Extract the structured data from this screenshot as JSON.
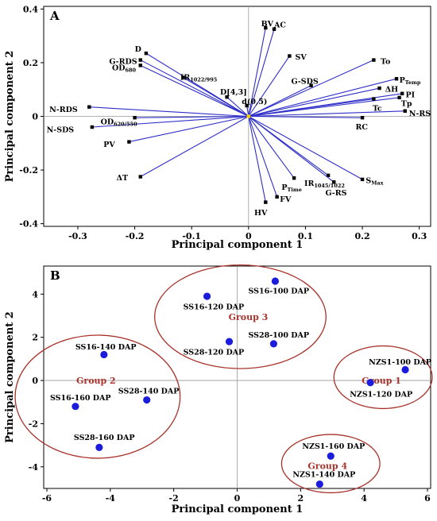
{
  "chart_data": [
    {
      "type": "scatter",
      "subtype": "biplot",
      "panel": "A",
      "xlabel": "Principal component 1",
      "ylabel": "Principal component 2",
      "xlim": [
        -0.36,
        0.32
      ],
      "ylim": [
        -0.41,
        0.41
      ],
      "xticks": [
        -0.3,
        -0.2,
        -0.1,
        0,
        0.1,
        0.2,
        0.3
      ],
      "yticks": [
        -0.4,
        -0.2,
        0,
        0.2,
        0.4
      ],
      "grid": false,
      "colors": {
        "vector": "#2f2fc8",
        "marker": "#000000"
      },
      "vectors": [
        {
          "label": "BV",
          "x": 0.03,
          "y": 0.33,
          "lx": 0.022,
          "ly": 0.345
        },
        {
          "label": "AC",
          "x": 0.045,
          "y": 0.325,
          "lx": 0.045,
          "ly": 0.34
        },
        {
          "label": "SV",
          "x": 0.072,
          "y": 0.225,
          "lx": 0.082,
          "ly": 0.22
        },
        {
          "label": "To",
          "x": 0.22,
          "y": 0.21,
          "lx": 0.232,
          "ly": 0.205
        },
        {
          "label": "G-SDS",
          "x": 0.11,
          "y": 0.115,
          "lx": 0.075,
          "ly": 0.13
        },
        {
          "label": "P",
          "sub": "Temp",
          "x": 0.26,
          "y": 0.14,
          "lx": 0.265,
          "ly": 0.135
        },
        {
          "label": "ΔH",
          "x": 0.23,
          "y": 0.105,
          "lx": 0.24,
          "ly": 0.1
        },
        {
          "label": "PI",
          "x": 0.27,
          "y": 0.085,
          "lx": 0.276,
          "ly": 0.08
        },
        {
          "label": "Tp",
          "x": 0.265,
          "y": 0.07,
          "lx": 0.268,
          "ly": 0.048
        },
        {
          "label": "Tc",
          "x": 0.22,
          "y": 0.065,
          "lx": 0.218,
          "ly": 0.03
        },
        {
          "label": "N-RS",
          "x": 0.275,
          "y": 0.02,
          "lx": 0.282,
          "ly": 0.01
        },
        {
          "label": "RC",
          "x": 0.2,
          "y": -0.005,
          "lx": 0.188,
          "ly": -0.04
        },
        {
          "label": "S",
          "sub": "Max",
          "x": 0.2,
          "y": -0.235,
          "lx": 0.206,
          "ly": -0.24
        },
        {
          "label": "IR",
          "sub": "1045/1022",
          "x": 0.14,
          "y": -0.22,
          "lx": 0.098,
          "ly": -0.25
        },
        {
          "label": "G-RS",
          "x": 0.15,
          "y": -0.245,
          "lx": 0.135,
          "ly": -0.285
        },
        {
          "label": "P",
          "sub": "Time",
          "x": 0.08,
          "y": -0.23,
          "lx": 0.058,
          "ly": -0.265
        },
        {
          "label": "FV",
          "x": 0.05,
          "y": -0.3,
          "lx": 0.055,
          "ly": -0.31
        },
        {
          "label": "HV",
          "x": 0.03,
          "y": -0.32,
          "lx": 0.01,
          "ly": -0.36
        },
        {
          "label": "ΔT",
          "x": -0.19,
          "y": -0.225,
          "lx": -0.232,
          "ly": -0.23
        },
        {
          "label": "PV",
          "x": -0.21,
          "y": -0.095,
          "lx": -0.255,
          "ly": -0.105
        },
        {
          "label": "N-SDS",
          "x": -0.275,
          "y": -0.04,
          "lx": -0.355,
          "ly": -0.05
        },
        {
          "label": "OD",
          "sub": "620/550",
          "x": -0.2,
          "y": -0.005,
          "lx": -0.26,
          "ly": -0.02
        },
        {
          "label": "N-RDS",
          "x": -0.28,
          "y": 0.035,
          "lx": -0.35,
          "ly": 0.025
        },
        {
          "label": "OD",
          "sub": "680",
          "x": -0.19,
          "y": 0.19,
          "lx": -0.24,
          "ly": 0.18
        },
        {
          "label": "G-RDS",
          "x": -0.19,
          "y": 0.21,
          "lx": -0.245,
          "ly": 0.205
        },
        {
          "label": "D",
          "x": -0.18,
          "y": 0.235,
          "lx": -0.2,
          "ly": 0.25
        },
        {
          "label": "IR",
          "sub": "1022/995",
          "x": -0.115,
          "y": 0.145,
          "lx": -0.12,
          "ly": 0.145
        },
        {
          "label": "D[4,3]",
          "x": -0.038,
          "y": 0.072,
          "lx": -0.05,
          "ly": 0.09
        },
        {
          "label": "d(0,5)",
          "x": -0.003,
          "y": 0.04,
          "lx": -0.012,
          "ly": 0.055
        }
      ]
    },
    {
      "type": "scatter",
      "panel": "B",
      "xlabel": "Principal component 1",
      "ylabel": "Principal component 2",
      "xlim": [
        -6.1,
        6.1
      ],
      "ylim": [
        -5.0,
        5.3
      ],
      "xticks": [
        -6,
        -4,
        -2,
        0,
        2,
        4,
        6
      ],
      "yticks": [
        -4,
        -2,
        0,
        2,
        4
      ],
      "grid": false,
      "colors": {
        "point": "#1c1cdc",
        "group": "#a8332b"
      },
      "points": [
        {
          "label": "SS16-100 DAP",
          "x": 1.2,
          "y": 4.6,
          "lx": 0.35,
          "ly": 4.15
        },
        {
          "label": "SS16-120 DAP",
          "x": -0.95,
          "y": 3.9,
          "lx": -1.7,
          "ly": 3.4
        },
        {
          "label": "SS28-100 DAP",
          "x": 1.15,
          "y": 1.7,
          "lx": 0.35,
          "ly": 2.1
        },
        {
          "label": "SS28-120 DAP",
          "x": -0.25,
          "y": 1.8,
          "lx": -1.7,
          "ly": 1.3
        },
        {
          "label": "SS16-140 DAP",
          "x": -4.2,
          "y": 1.2,
          "lx": -5.1,
          "ly": 1.55
        },
        {
          "label": "SS28-140 DAP",
          "x": -2.85,
          "y": -0.9,
          "lx": -3.75,
          "ly": -0.5
        },
        {
          "label": "SS16-160 DAP",
          "x": -5.1,
          "y": -1.2,
          "lx": -5.9,
          "ly": -0.8
        },
        {
          "label": "SS28-160 DAP",
          "x": -4.35,
          "y": -3.1,
          "lx": -5.15,
          "ly": -2.65
        },
        {
          "label": "NZS1-100 DAP",
          "x": 5.3,
          "y": 0.5,
          "lx": 4.15,
          "ly": 0.85
        },
        {
          "label": "NZS1-120 DAP",
          "x": 4.2,
          "y": -0.1,
          "lx": 3.55,
          "ly": -0.65
        },
        {
          "label": "NZS1-160 DAP",
          "x": 2.95,
          "y": -3.5,
          "lx": 2.05,
          "ly": -3.05
        },
        {
          "label": "NZS1-140 DAP",
          "x": 2.6,
          "y": -4.8,
          "lx": 1.75,
          "ly": -4.35
        }
      ],
      "groups": [
        {
          "label": "Group 1",
          "cx": 4.6,
          "cy": 0.15,
          "rx": 1.55,
          "ry": 1.45,
          "lx": 4.55,
          "ly": 0.0
        },
        {
          "label": "Group 2",
          "cx": -4.4,
          "cy": -0.75,
          "rx": 2.6,
          "ry": 2.85,
          "lx": -4.45,
          "ly": 0.0
        },
        {
          "label": "Group 3",
          "cx": 0.1,
          "cy": 2.95,
          "rx": 2.7,
          "ry": 2.4,
          "lx": 0.35,
          "ly": 2.95
        },
        {
          "label": "Group 4",
          "cx": 2.95,
          "cy": -3.85,
          "rx": 1.55,
          "ry": 1.35,
          "lx": 2.85,
          "ly": -3.95
        }
      ]
    }
  ]
}
